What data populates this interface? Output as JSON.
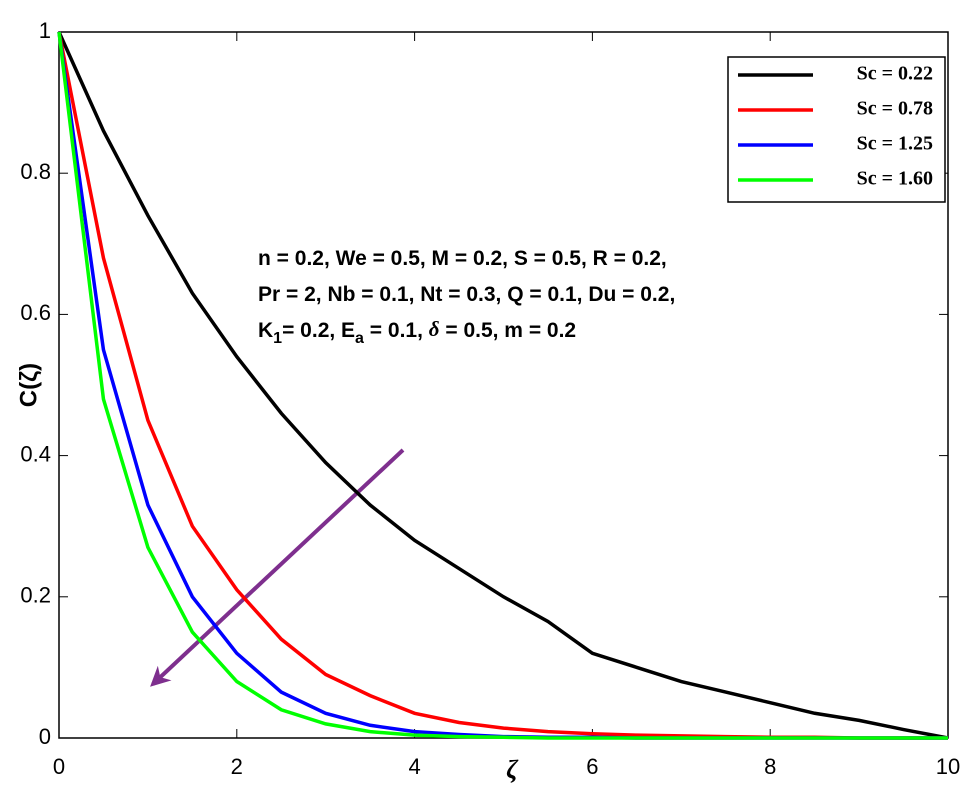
{
  "chart_data": {
    "type": "line",
    "xlabel": "ζ",
    "ylabel": "C(ζ)",
    "x": [
      0,
      0.5,
      1,
      1.5,
      2,
      2.5,
      3,
      3.5,
      4,
      4.5,
      5,
      5.5,
      6,
      6.5,
      7,
      7.5,
      8,
      8.5,
      9,
      9.5,
      10
    ],
    "series": [
      {
        "name": "Sc = 0.22",
        "color": "#000000",
        "values": [
          1,
          0.86,
          0.74,
          0.63,
          0.54,
          0.46,
          0.39,
          0.33,
          0.28,
          0.24,
          0.2,
          0.165,
          0.12,
          0.1,
          0.08,
          0.065,
          0.05,
          0.035,
          0.025,
          0.012,
          0
        ]
      },
      {
        "name": "Sc = 0.78",
        "color": "#ff0000",
        "values": [
          1,
          0.68,
          0.45,
          0.3,
          0.21,
          0.14,
          0.09,
          0.06,
          0.035,
          0.022,
          0.014,
          0.009,
          0.006,
          0.004,
          0.003,
          0.002,
          0.001,
          0.001,
          0,
          0,
          0
        ]
      },
      {
        "name": "Sc = 1.25",
        "color": "#0000ff",
        "values": [
          1,
          0.55,
          0.33,
          0.2,
          0.12,
          0.065,
          0.035,
          0.018,
          0.009,
          0.005,
          0.002,
          0.001,
          0.001,
          0,
          0,
          0,
          0,
          0,
          0,
          0,
          0
        ]
      },
      {
        "name": "Sc = 1.60",
        "color": "#00ff00",
        "values": [
          1,
          0.48,
          0.27,
          0.15,
          0.08,
          0.04,
          0.02,
          0.009,
          0.004,
          0.002,
          0.001,
          0,
          0,
          0,
          0,
          0,
          0,
          0,
          0,
          0,
          0
        ]
      }
    ],
    "annotations": [
      [
        "n = 0.2, We = 0.5, M = 0.2, S = 0.5, R = 0.2,"
      ],
      [
        "Pr = 2, Nb = 0.1, Nt = 0.3, Q = 0.1, Du = 0.2,"
      ],
      [
        "K",
        "1",
        "= 0.2, E",
        "a",
        " = 0.1, ",
        "δ",
        " = 0.5, m = 0.2"
      ]
    ],
    "xlim": [
      0,
      10
    ],
    "ylim": [
      0,
      1
    ],
    "xticks": [
      0,
      2,
      4,
      6,
      8,
      10
    ],
    "yticks": [
      0,
      0.2,
      0.4,
      0.6,
      0.8,
      1
    ],
    "legend": "upper right"
  }
}
